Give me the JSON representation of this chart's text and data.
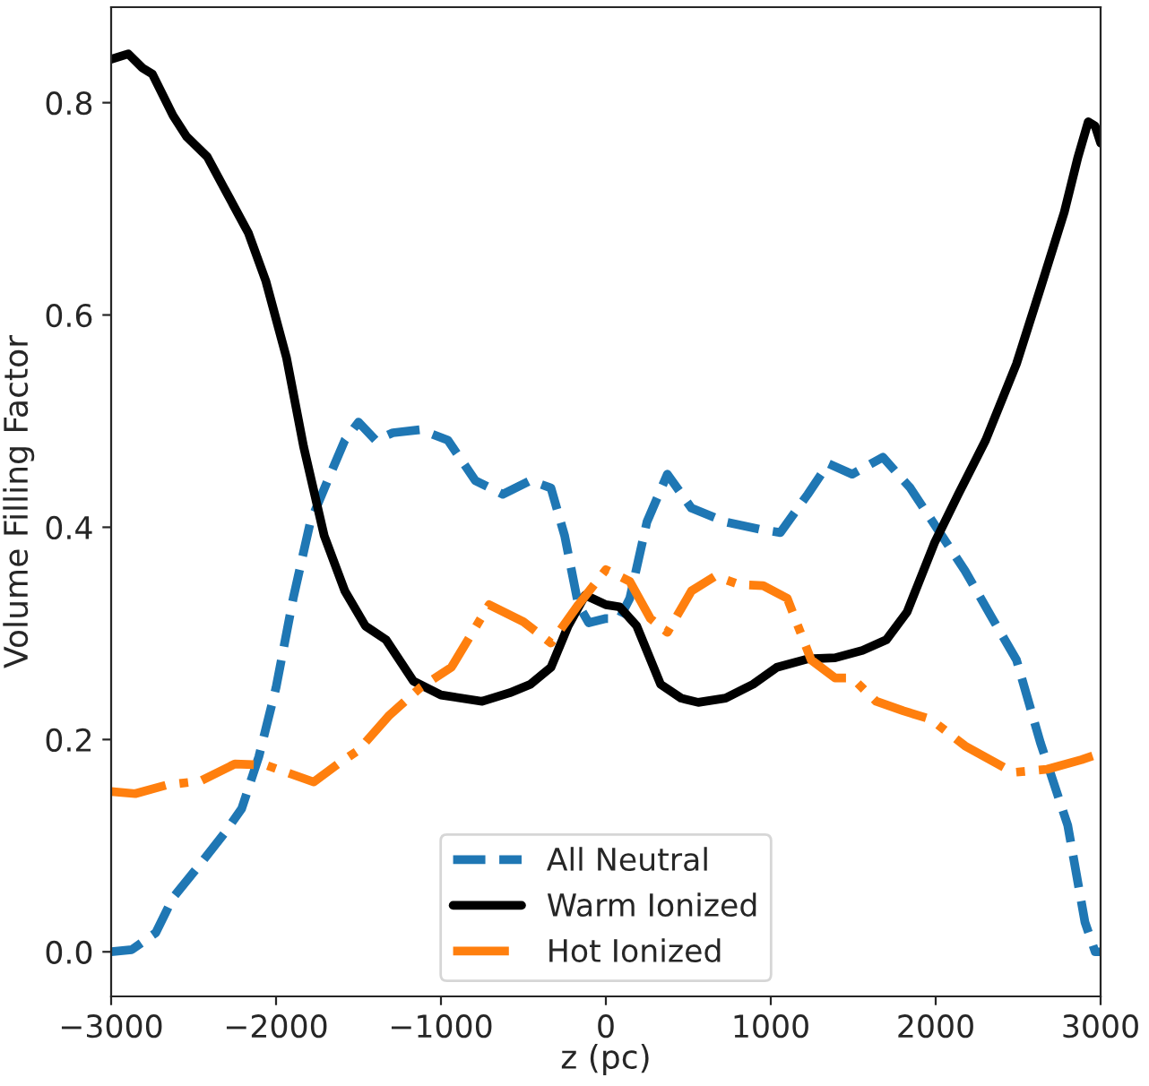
{
  "chart_data": {
    "type": "line",
    "xlabel": "z (pc)",
    "ylabel": "Volume Filling Factor",
    "xlim": [
      -3000,
      3000
    ],
    "xticks": [
      {
        "value": -3000,
        "label": "−3000"
      },
      {
        "value": -2000,
        "label": "−2000"
      },
      {
        "value": -1000,
        "label": "−1000"
      },
      0,
      1000,
      2000,
      3000
    ],
    "ylim": [
      -0.042,
      0.89
    ],
    "yticks": [
      {
        "value": 0,
        "label": "0.0"
      },
      {
        "value": 0.2,
        "label": "0.2"
      },
      {
        "value": 0.4,
        "label": "0.4"
      },
      {
        "value": 0.6,
        "label": "0.6"
      },
      {
        "value": 0.8,
        "label": "0.8"
      }
    ],
    "grid": false,
    "legend": "bottom",
    "series": [
      {
        "name": "All Neutral",
        "color": "#1f77b4",
        "line_style": "dashed",
        "x": [
          -3000,
          -2875,
          -2729,
          -2625,
          -2458,
          -2312,
          -2208,
          -2104,
          -2000,
          -1896,
          -1792,
          -1687,
          -1583,
          -1500,
          -1396,
          -1292,
          -1125,
          -958,
          -792,
          -625,
          -458,
          -333,
          -250,
          -167,
          -104,
          0,
          83,
          145,
          249,
          373,
          519,
          726,
          934,
          1058,
          1224,
          1349,
          1494,
          1680,
          1846,
          2012,
          2178,
          2344,
          2490,
          2635,
          2801,
          2905,
          2967,
          3000
        ],
        "values": [
          0.0,
          0.002,
          0.018,
          0.051,
          0.083,
          0.112,
          0.135,
          0.184,
          0.249,
          0.333,
          0.405,
          0.444,
          0.482,
          0.499,
          0.482,
          0.489,
          0.492,
          0.482,
          0.444,
          0.431,
          0.444,
          0.437,
          0.392,
          0.327,
          0.31,
          0.314,
          0.314,
          0.333,
          0.405,
          0.45,
          0.418,
          0.405,
          0.398,
          0.395,
          0.431,
          0.46,
          0.45,
          0.466,
          0.437,
          0.398,
          0.359,
          0.314,
          0.275,
          0.197,
          0.119,
          0.028,
          0.0,
          0.0
        ]
      },
      {
        "name": "Warm Ionized",
        "color": "#000000",
        "line_style": "solid",
        "x": [
          -3000,
          -2896,
          -2812,
          -2750,
          -2625,
          -2542,
          -2417,
          -2292,
          -2167,
          -2062,
          -1937,
          -1833,
          -1708,
          -1583,
          -1458,
          -1333,
          -1167,
          -1000,
          -750,
          -583,
          -458,
          -333,
          -229,
          -125,
          0,
          83,
          187,
          332,
          456,
          560,
          726,
          892,
          1037,
          1224,
          1390,
          1556,
          1701,
          1826,
          1992,
          2137,
          2303,
          2490,
          2635,
          2780,
          2863,
          2925,
          2967,
          3000
        ],
        "values": [
          0.841,
          0.846,
          0.833,
          0.827,
          0.788,
          0.768,
          0.749,
          0.713,
          0.677,
          0.632,
          0.56,
          0.476,
          0.392,
          0.34,
          0.307,
          0.294,
          0.255,
          0.242,
          0.236,
          0.244,
          0.252,
          0.268,
          0.307,
          0.336,
          0.327,
          0.325,
          0.307,
          0.252,
          0.239,
          0.235,
          0.239,
          0.252,
          0.268,
          0.276,
          0.277,
          0.284,
          0.294,
          0.32,
          0.385,
          0.431,
          0.482,
          0.554,
          0.625,
          0.697,
          0.749,
          0.782,
          0.778,
          0.762
        ]
      },
      {
        "name": "Hot Ionized",
        "color": "#ff7f0e",
        "line_style": "dashdot",
        "x": [
          -3000,
          -2854,
          -2667,
          -2458,
          -2250,
          -2063,
          -1917,
          -1771,
          -1625,
          -1500,
          -1312,
          -1125,
          -937,
          -708,
          -500,
          -333,
          -167,
          0,
          145,
          270,
          373,
          519,
          664,
          809,
          954,
          1100,
          1245,
          1390,
          1494,
          1639,
          1805,
          1971,
          2178,
          2469,
          2676,
          2884,
          3000
        ],
        "values": [
          0.151,
          0.149,
          0.157,
          0.161,
          0.177,
          0.176,
          0.168,
          0.16,
          0.177,
          0.19,
          0.223,
          0.249,
          0.268,
          0.327,
          0.311,
          0.291,
          0.327,
          0.36,
          0.349,
          0.314,
          0.301,
          0.34,
          0.354,
          0.346,
          0.345,
          0.333,
          0.275,
          0.258,
          0.258,
          0.236,
          0.227,
          0.219,
          0.194,
          0.169,
          0.172,
          0.181,
          0.187
        ]
      }
    ]
  }
}
